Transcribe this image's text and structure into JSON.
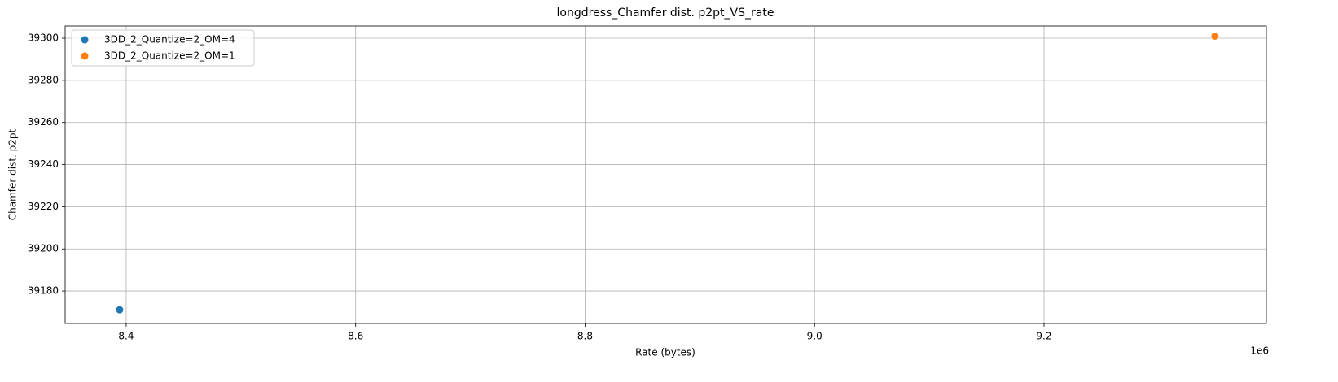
{
  "chart_data": {
    "type": "scatter",
    "title": "longdress_Chamfer dist. p2pt_VS_rate",
    "x_label": "Rate (bytes)",
    "y_label": "Chamfer dist. p2pt",
    "x_offset_label": "1e6",
    "series": [
      {
        "name": "3DD_2_Quantize=2_OM=4",
        "color": "#1f77b4",
        "x": [
          8394300
        ],
        "values": [
          39171.1
        ]
      },
      {
        "name": "3DD_2_Quantize=2_OM=1",
        "color": "#ff7f0e",
        "x": [
          9349000
        ],
        "values": [
          39301.0
        ]
      }
    ],
    "xlim": [
      8346800,
      9393800
    ],
    "ylim": [
      39164.6,
      39305.8
    ],
    "xticks": [
      {
        "value": 8400000,
        "label": "8.4"
      },
      {
        "value": 8600000,
        "label": "8.6"
      },
      {
        "value": 8800000,
        "label": "8.8"
      },
      {
        "value": 9000000,
        "label": "9.0"
      },
      {
        "value": 9200000,
        "label": "9.2"
      }
    ],
    "yticks": [
      39180,
      39200,
      39220,
      39240,
      39260,
      39280,
      39300
    ],
    "grid": true,
    "legend": "upper left"
  }
}
